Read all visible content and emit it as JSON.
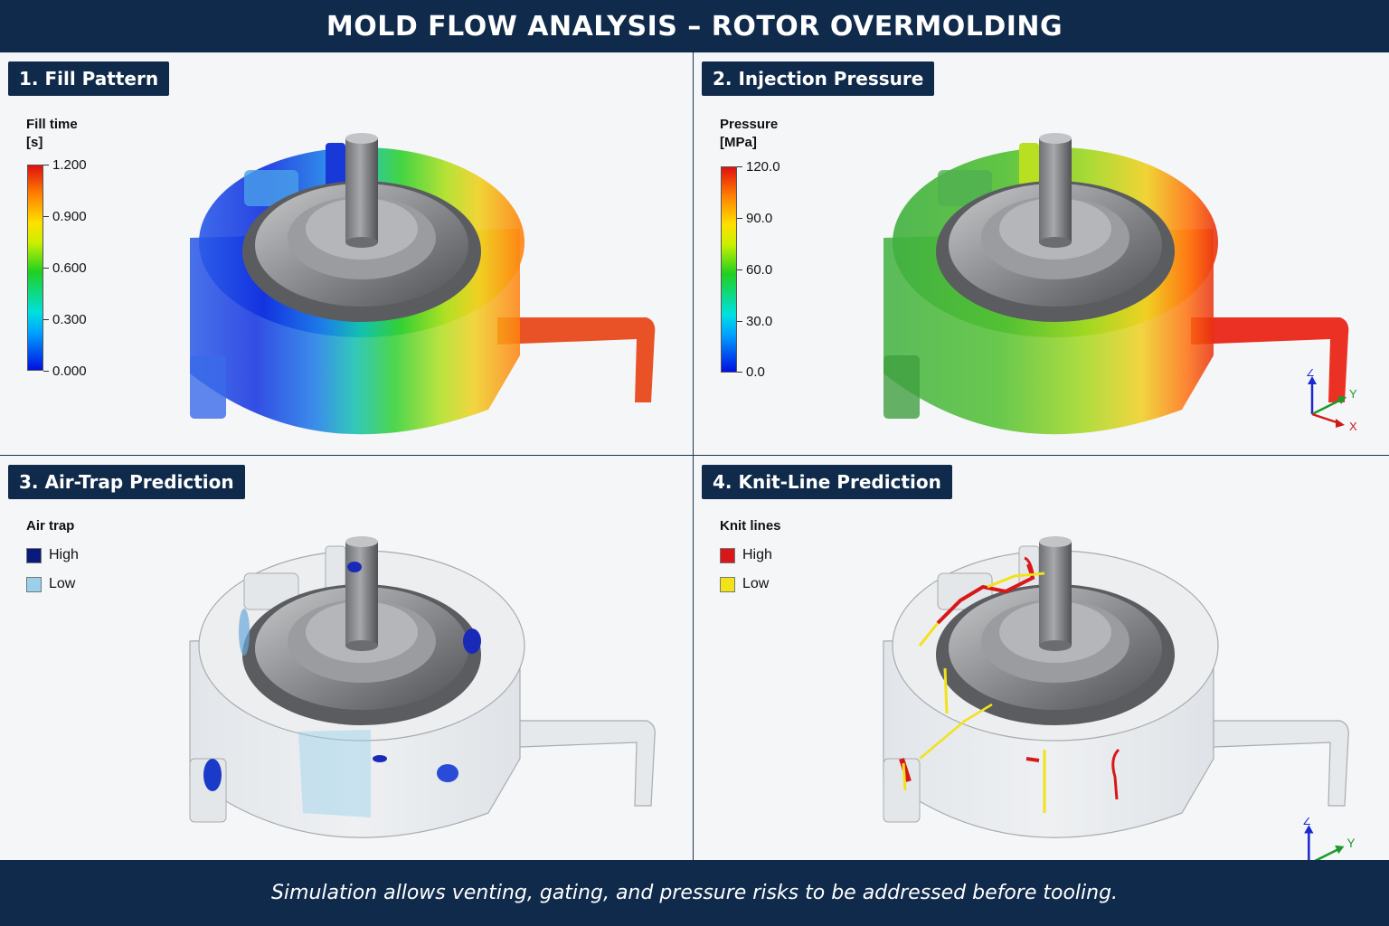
{
  "header": {
    "title": "MOLD FLOW ANALYSIS – ROTOR OVERMOLDING"
  },
  "footer": {
    "caption": "Simulation allows venting, gating, and pressure risks to be addressed before tooling."
  },
  "panels": [
    {
      "title": "1. Fill Pattern",
      "legend": {
        "title_line1": "Fill time",
        "title_line2": "[s]",
        "ticks": [
          "1.200",
          "0.900",
          "0.600",
          "0.300",
          "0.000"
        ]
      }
    },
    {
      "title": "2. Injection Pressure",
      "legend": {
        "title_line1": "Pressure",
        "title_line2": "[MPa]",
        "ticks": [
          "120.0",
          "90.0",
          "60.0",
          "30.0",
          "0.0"
        ]
      }
    },
    {
      "title": "3. Air-Trap Prediction",
      "legend": {
        "title": "Air trap",
        "items": [
          {
            "label": "High",
            "color": "#0a1a7a"
          },
          {
            "label": "Low",
            "color": "#9ad0ea"
          }
        ]
      }
    },
    {
      "title": "4. Knit-Line Prediction",
      "legend": {
        "title": "Knit lines",
        "items": [
          {
            "label": "High",
            "color": "#d81818"
          },
          {
            "label": "Low",
            "color": "#f2e21a"
          }
        ]
      }
    }
  ],
  "axes": {
    "z": "Z",
    "y": "Y",
    "x": "X"
  },
  "colors": {
    "navy": "#0f2a4a"
  }
}
